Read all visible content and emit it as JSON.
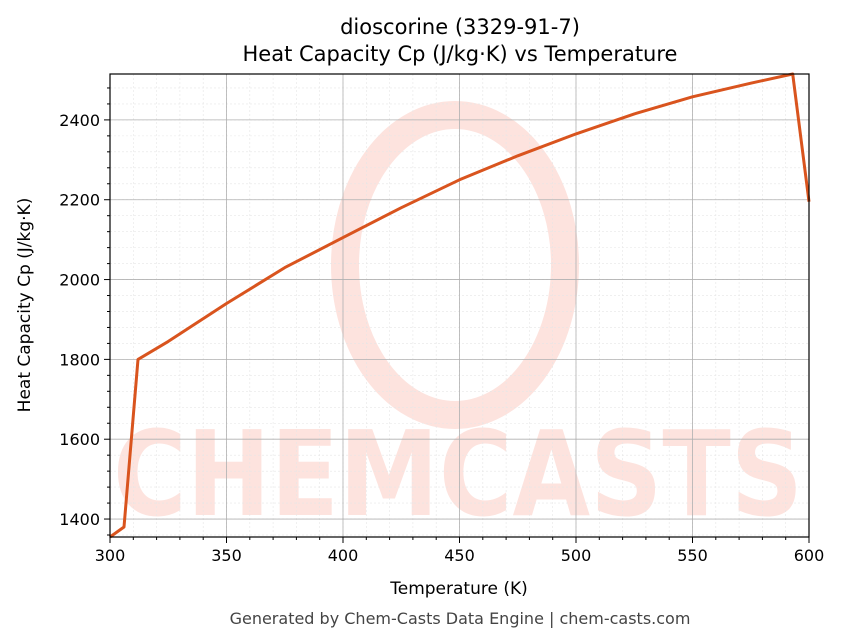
{
  "chart_data": {
    "type": "line",
    "title": "dioscorine (3329-91-7)",
    "subtitle": "Heat Capacity Cp (J/kg·K) vs Temperature",
    "xlabel": "Temperature (K)",
    "ylabel": "Heat Capacity Cp (J/kg·K)",
    "xlim": [
      300,
      600
    ],
    "ylim": [
      1355,
      2515
    ],
    "x_ticks": [
      300,
      350,
      400,
      450,
      500,
      550,
      600
    ],
    "y_ticks": [
      1400,
      1600,
      1800,
      2000,
      2200,
      2400
    ],
    "grid": true,
    "legend": "none",
    "series": [
      {
        "color": "#d9541e",
        "x": [
          300,
          306,
          312,
          325,
          350,
          375,
          400,
          425,
          450,
          475,
          500,
          525,
          550,
          575,
          593,
          600
        ],
        "y": [
          1355,
          1380,
          1800,
          1845,
          1940,
          2030,
          2105,
          2180,
          2250,
          2310,
          2365,
          2415,
          2458,
          2492,
          2515,
          2195
        ]
      }
    ]
  },
  "watermark": "CHEMCASTS",
  "footer": "Generated by Chem-Casts Data Engine | chem-casts.com"
}
